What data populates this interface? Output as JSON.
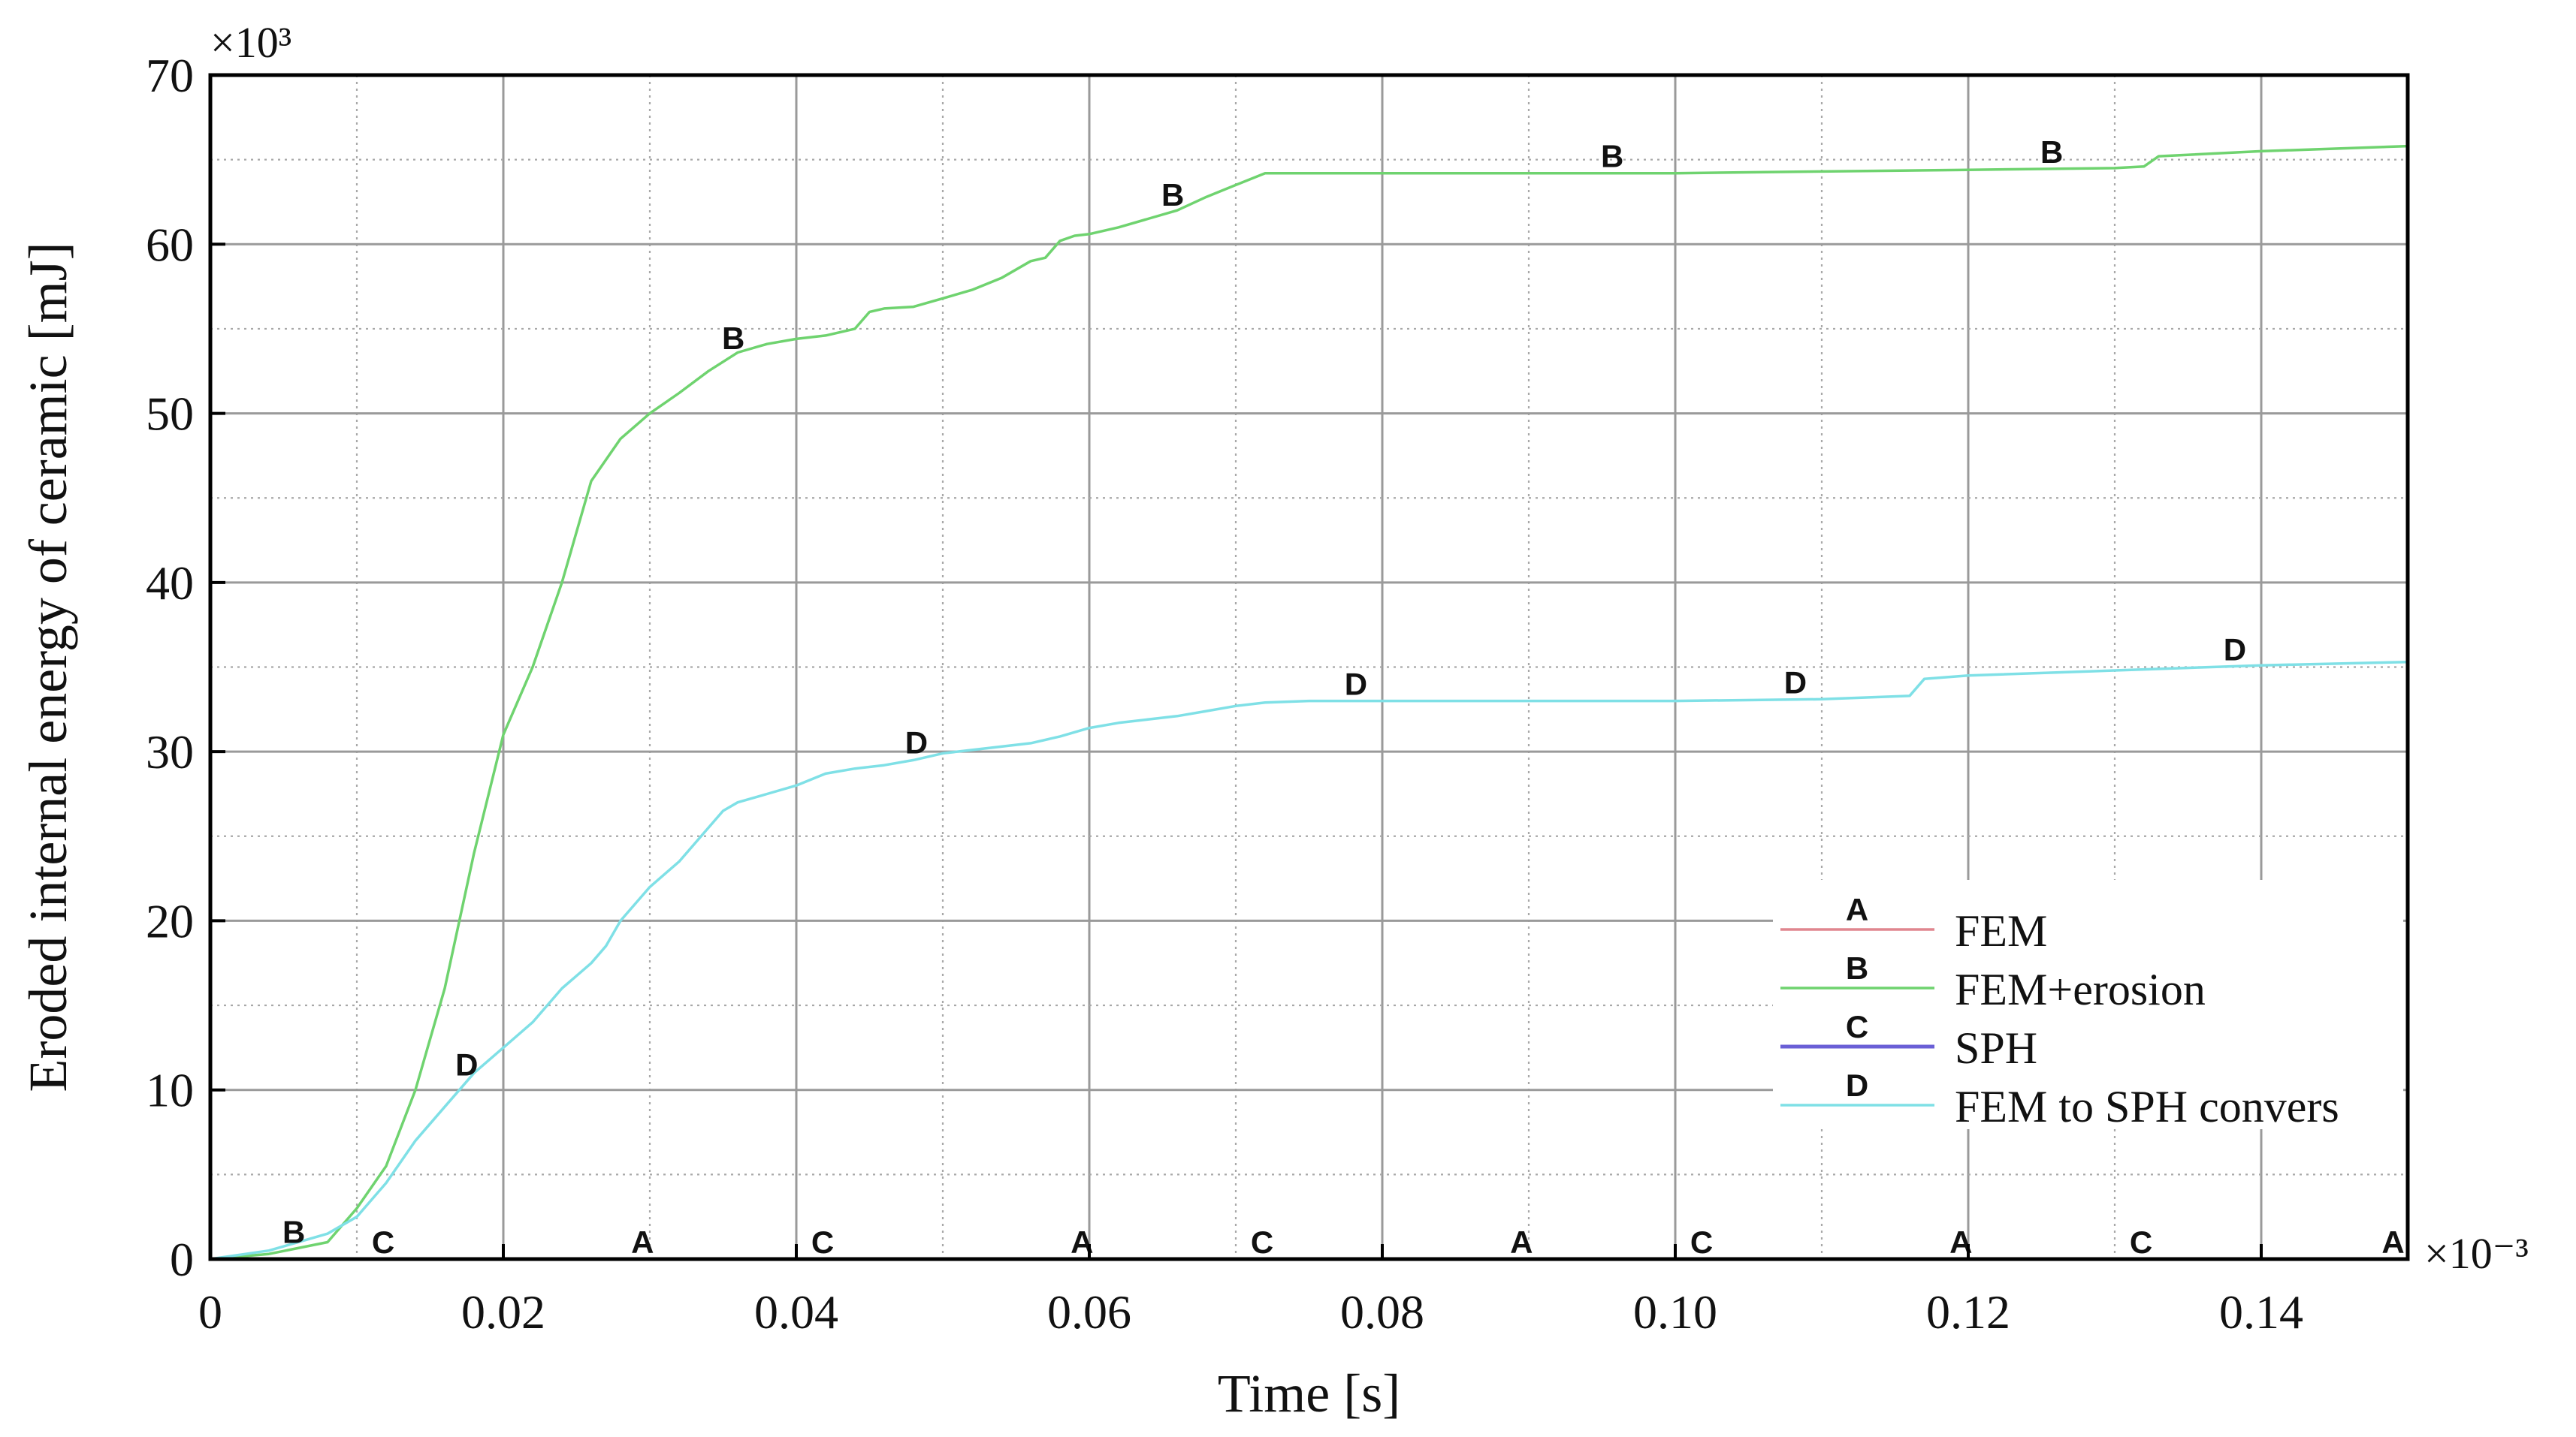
{
  "chart_data": {
    "type": "line",
    "xlabel": "Time [s]",
    "ylabel": "Eroded internal energy of ceramic [mJ]",
    "x_multiplier": "×10⁻³",
    "y_multiplier": "×10³",
    "xlim": [
      0,
      0.15
    ],
    "ylim": [
      0,
      70
    ],
    "x_ticks": [
      {
        "value": 0,
        "label": "0"
      },
      {
        "value": 0.02,
        "label": "0.02"
      },
      {
        "value": 0.04,
        "label": "0.04"
      },
      {
        "value": 0.06,
        "label": "0.06"
      },
      {
        "value": 0.08,
        "label": "0.08"
      },
      {
        "value": 0.1,
        "label": "0.10"
      },
      {
        "value": 0.12,
        "label": "0.12"
      },
      {
        "value": 0.14,
        "label": "0.14"
      }
    ],
    "y_ticks": [
      {
        "value": 0,
        "label": "0"
      },
      {
        "value": 10,
        "label": "10"
      },
      {
        "value": 20,
        "label": "20"
      },
      {
        "value": 30,
        "label": "30"
      },
      {
        "value": 40,
        "label": "40"
      },
      {
        "value": 50,
        "label": "50"
      },
      {
        "value": 60,
        "label": "60"
      },
      {
        "value": 70,
        "label": "70"
      }
    ],
    "grid": true,
    "legend_position": "bottom-right",
    "series": [
      {
        "name": "FEM",
        "marker_label": "A",
        "color": "#e0868f",
        "x": [
          0,
          0.15
        ],
        "y": [
          0,
          0
        ],
        "marker_x": [
          0.0295,
          0.0595,
          0.0895,
          0.1195,
          0.149
        ]
      },
      {
        "name": "FEM+erosion",
        "marker_label": "B",
        "color": "#6fd36f",
        "x": [
          0,
          0.004,
          0.008,
          0.01,
          0.012,
          0.014,
          0.016,
          0.018,
          0.02,
          0.022,
          0.024,
          0.026,
          0.028,
          0.03,
          0.032,
          0.034,
          0.036,
          0.038,
          0.04,
          0.042,
          0.044,
          0.045,
          0.046,
          0.048,
          0.05,
          0.052,
          0.054,
          0.056,
          0.057,
          0.058,
          0.059,
          0.06,
          0.062,
          0.064,
          0.066,
          0.068,
          0.07,
          0.072,
          0.08,
          0.09,
          0.1,
          0.11,
          0.12,
          0.13,
          0.132,
          0.133,
          0.14,
          0.15
        ],
        "y": [
          0,
          0.3,
          1.0,
          3.0,
          5.5,
          10,
          16,
          24,
          31,
          35,
          40,
          46,
          48.5,
          50,
          51.2,
          52.5,
          53.6,
          54.1,
          54.4,
          54.6,
          55,
          56,
          56.2,
          56.3,
          56.8,
          57.3,
          58,
          59,
          59.2,
          60.2,
          60.5,
          60.6,
          61,
          61.5,
          62,
          62.8,
          63.5,
          64.2,
          64.2,
          64.2,
          64.2,
          64.3,
          64.4,
          64.5,
          64.6,
          65.2,
          65.5,
          65.8
        ],
        "marker_x": [
          0.0057,
          0.0357,
          0.0657,
          0.0957,
          0.1257
        ]
      },
      {
        "name": "SPH",
        "marker_label": "C",
        "color": "#6a5fd6",
        "x": [
          0,
          0.15
        ],
        "y": [
          0,
          0
        ],
        "marker_x": [
          0.0118,
          0.0418,
          0.0718,
          0.1018,
          0.1318
        ]
      },
      {
        "name": "FEM to SPH convers",
        "marker_label": "D",
        "color": "#7fe0e6",
        "x": [
          0,
          0.004,
          0.008,
          0.01,
          0.012,
          0.014,
          0.016,
          0.018,
          0.02,
          0.022,
          0.024,
          0.026,
          0.027,
          0.028,
          0.029,
          0.03,
          0.032,
          0.034,
          0.035,
          0.036,
          0.038,
          0.04,
          0.042,
          0.044,
          0.046,
          0.048,
          0.05,
          0.052,
          0.054,
          0.056,
          0.058,
          0.06,
          0.062,
          0.064,
          0.066,
          0.068,
          0.07,
          0.072,
          0.075,
          0.078,
          0.09,
          0.1,
          0.11,
          0.116,
          0.117,
          0.12,
          0.13,
          0.14,
          0.15
        ],
        "y": [
          0,
          0.5,
          1.5,
          2.5,
          4.5,
          7,
          9,
          11,
          12.5,
          14,
          16,
          17.5,
          18.5,
          20,
          21,
          22,
          23.5,
          25.5,
          26.5,
          27,
          27.5,
          28,
          28.7,
          29,
          29.2,
          29.5,
          29.9,
          30.1,
          30.3,
          30.5,
          30.9,
          31.4,
          31.7,
          31.9,
          32.1,
          32.4,
          32.7,
          32.9,
          33,
          33,
          33,
          33,
          33.1,
          33.3,
          34.3,
          34.5,
          34.8,
          35.1,
          35.3
        ],
        "marker_x": [
          0.0175,
          0.0482,
          0.0782,
          0.1082,
          0.1382
        ]
      }
    ]
  }
}
